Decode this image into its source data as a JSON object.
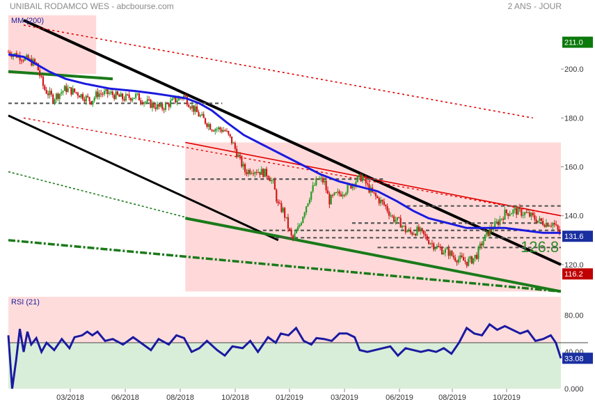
{
  "header": {
    "title": "UNIBAIL RODAMCO WES - abcbourse.com",
    "period": "2 ANS - JOUR"
  },
  "colors": {
    "price_pane_bg": "#ffffff",
    "zone_fill": "#ffd9d9",
    "ma_line": "#1a1adf",
    "channel_black": "#000000",
    "channel_red": "#e00000",
    "support_green": "#1a7a1a",
    "up_candle": "#2a9b2a",
    "down_candle": "#d01818",
    "rsi_line": "#1a1aa0",
    "rsi_overbought_bg": "#ffdcdc",
    "rsi_oversold_bg": "#d9eed9",
    "badge_last": "#1a2fa0",
    "badge_high": "#0c7a0c",
    "badge_low": "#c00000"
  },
  "chart_data": [
    {
      "type": "candlestick",
      "indicator_label": "MM (200)",
      "x_tick_labels": [
        "03/2018",
        "06/2018",
        "08/2018",
        "10/2018",
        "01/2019",
        "03/2019",
        "06/2019",
        "08/2019",
        "10/2019"
      ],
      "y_tick_labels": [
        "120.0",
        "140.0",
        "160.0",
        "180.0",
        "200.0"
      ],
      "ylim": [
        108,
        222
      ],
      "grid": false,
      "annotation": "126.8",
      "badges": {
        "high": "211.0",
        "last": "131.6",
        "low": "116.2"
      },
      "close_points": [
        [
          0,
          207
        ],
        [
          10,
          205
        ],
        [
          18,
          203
        ],
        [
          22,
          202
        ],
        [
          25,
          197
        ],
        [
          28,
          192
        ],
        [
          35,
          188
        ],
        [
          45,
          192
        ],
        [
          55,
          190
        ],
        [
          65,
          187
        ],
        [
          70,
          190
        ],
        [
          80,
          190
        ],
        [
          90,
          188
        ],
        [
          100,
          189
        ],
        [
          110,
          186
        ],
        [
          120,
          184
        ],
        [
          130,
          187
        ],
        [
          138,
          189
        ],
        [
          142,
          186
        ],
        [
          150,
          181
        ],
        [
          160,
          176
        ],
        [
          170,
          175
        ],
        [
          176,
          170
        ],
        [
          180,
          165
        ],
        [
          186,
          158
        ],
        [
          192,
          159
        ],
        [
          198,
          158
        ],
        [
          204,
          157
        ],
        [
          208,
          153
        ],
        [
          212,
          144
        ],
        [
          216,
          142
        ],
        [
          220,
          135
        ],
        [
          223,
          130
        ],
        [
          228,
          135
        ],
        [
          233,
          143
        ],
        [
          238,
          150
        ],
        [
          243,
          155
        ],
        [
          248,
          154
        ],
        [
          252,
          146
        ],
        [
          256,
          148
        ],
        [
          260,
          149
        ],
        [
          266,
          151
        ],
        [
          272,
          154
        ],
        [
          278,
          156
        ],
        [
          282,
          152
        ],
        [
          286,
          149
        ],
        [
          290,
          147
        ],
        [
          296,
          144
        ],
        [
          302,
          139
        ],
        [
          308,
          137
        ],
        [
          312,
          134
        ],
        [
          316,
          133
        ],
        [
          322,
          134
        ],
        [
          328,
          131
        ],
        [
          334,
          128
        ],
        [
          340,
          126
        ],
        [
          346,
          125
        ],
        [
          350,
          123
        ],
        [
          356,
          122
        ],
        [
          360,
          121
        ],
        [
          364,
          122
        ],
        [
          368,
          124
        ],
        [
          372,
          129
        ],
        [
          378,
          134
        ],
        [
          384,
          137
        ],
        [
          390,
          141
        ],
        [
          398,
          142
        ],
        [
          405,
          141
        ],
        [
          410,
          140
        ],
        [
          416,
          138
        ],
        [
          422,
          137
        ],
        [
          428,
          137
        ],
        [
          434,
          131.6
        ]
      ],
      "ma_points": [
        [
          0,
          206
        ],
        [
          12,
          205
        ],
        [
          22,
          202
        ],
        [
          32,
          199
        ],
        [
          45,
          196
        ],
        [
          60,
          194
        ],
        [
          80,
          192
        ],
        [
          100,
          191
        ],
        [
          115,
          190
        ],
        [
          128,
          189
        ],
        [
          140,
          188
        ],
        [
          150,
          186
        ],
        [
          160,
          183
        ],
        [
          172,
          178
        ],
        [
          185,
          173
        ],
        [
          200,
          169
        ],
        [
          215,
          165
        ],
        [
          230,
          161
        ],
        [
          245,
          157
        ],
        [
          260,
          154
        ],
        [
          275,
          152
        ],
        [
          290,
          150
        ],
        [
          305,
          146
        ],
        [
          318,
          142
        ],
        [
          330,
          139
        ],
        [
          345,
          137
        ],
        [
          360,
          135
        ],
        [
          375,
          135
        ],
        [
          390,
          135
        ],
        [
          405,
          134
        ],
        [
          420,
          133
        ],
        [
          434,
          133
        ]
      ],
      "horizontal_levels": [
        {
          "value": 186,
          "from_day": 0,
          "to_day": 168
        },
        {
          "value": 155,
          "from_day": 139,
          "to_day": 296
        },
        {
          "value": 144,
          "from_day": 313,
          "to_day": 434
        },
        {
          "value": 137,
          "from_day": 270,
          "to_day": 420
        },
        {
          "value": 134,
          "from_day": 200,
          "to_day": 434
        },
        {
          "value": 131,
          "from_day": 210,
          "to_day": 434
        },
        {
          "value": 127,
          "from_day": 290,
          "to_day": 434
        }
      ],
      "channels": [
        {
          "role": "upper-black",
          "from": [
            12,
            220
          ],
          "to": [
            434,
            120
          ]
        },
        {
          "role": "lower-black",
          "from": [
            0,
            181
          ],
          "to": [
            212,
            130
          ]
        },
        {
          "role": "upper-red-dotted",
          "from": [
            12,
            218
          ],
          "to": [
            412,
            180
          ]
        },
        {
          "role": "lower-red-dotted",
          "from": [
            12,
            180
          ],
          "to": [
            434,
            140
          ]
        },
        {
          "role": "red-resistance",
          "from": [
            139,
            170
          ],
          "to": [
            434,
            140
          ]
        },
        {
          "role": "green-support",
          "from": [
            139,
            139
          ],
          "to": [
            434,
            109
          ]
        },
        {
          "role": "green-dotted",
          "from": [
            0,
            158
          ],
          "to": [
            142,
            139
          ]
        },
        {
          "role": "green-dashdot",
          "from": [
            0,
            130
          ],
          "to": [
            434,
            109
          ]
        },
        {
          "role": "green-short",
          "from": [
            0,
            199
          ],
          "to": [
            82,
            196
          ]
        }
      ],
      "zones": [
        {
          "from_day": 0,
          "to_day": 69,
          "top": 222,
          "bottom": 198
        },
        {
          "from_day": 139,
          "to_day": 434,
          "top": 170,
          "bottom": 109
        }
      ]
    },
    {
      "type": "line",
      "indicator_label": "RSI (21)",
      "y_tick_labels": [
        "0.000",
        "40.00",
        "80.00"
      ],
      "ylim": [
        0,
        100
      ],
      "threshold": 50,
      "last_value": "33.08",
      "points": [
        [
          0,
          58
        ],
        [
          3,
          0
        ],
        [
          6,
          30
        ],
        [
          9,
          65
        ],
        [
          12,
          40
        ],
        [
          15,
          62
        ],
        [
          18,
          48
        ],
        [
          22,
          55
        ],
        [
          26,
          40
        ],
        [
          30,
          50
        ],
        [
          36,
          42
        ],
        [
          42,
          54
        ],
        [
          48,
          44
        ],
        [
          52,
          56
        ],
        [
          58,
          58
        ],
        [
          62,
          62
        ],
        [
          66,
          58
        ],
        [
          70,
          62
        ],
        [
          76,
          52
        ],
        [
          82,
          54
        ],
        [
          90,
          48
        ],
        [
          98,
          56
        ],
        [
          106,
          48
        ],
        [
          112,
          42
        ],
        [
          118,
          54
        ],
        [
          126,
          48
        ],
        [
          132,
          58
        ],
        [
          138,
          55
        ],
        [
          144,
          40
        ],
        [
          150,
          44
        ],
        [
          156,
          52
        ],
        [
          164,
          42
        ],
        [
          170,
          36
        ],
        [
          176,
          46
        ],
        [
          184,
          44
        ],
        [
          190,
          52
        ],
        [
          196,
          40
        ],
        [
          204,
          56
        ],
        [
          210,
          50
        ],
        [
          214,
          60
        ],
        [
          220,
          58
        ],
        [
          226,
          66
        ],
        [
          232,
          52
        ],
        [
          238,
          48
        ],
        [
          242,
          55
        ],
        [
          248,
          54
        ],
        [
          254,
          52
        ],
        [
          260,
          60
        ],
        [
          266,
          60
        ],
        [
          272,
          56
        ],
        [
          276,
          42
        ],
        [
          282,
          40
        ],
        [
          288,
          42
        ],
        [
          294,
          44
        ],
        [
          300,
          46
        ],
        [
          306,
          36
        ],
        [
          312,
          44
        ],
        [
          318,
          42
        ],
        [
          324,
          40
        ],
        [
          330,
          42
        ],
        [
          336,
          40
        ],
        [
          342,
          44
        ],
        [
          348,
          38
        ],
        [
          354,
          50
        ],
        [
          360,
          66
        ],
        [
          366,
          60
        ],
        [
          372,
          58
        ],
        [
          378,
          70
        ],
        [
          384,
          64
        ],
        [
          390,
          68
        ],
        [
          396,
          64
        ],
        [
          402,
          60
        ],
        [
          408,
          63
        ],
        [
          414,
          52
        ],
        [
          420,
          54
        ],
        [
          426,
          58
        ],
        [
          430,
          50
        ],
        [
          434,
          33
        ]
      ]
    }
  ]
}
